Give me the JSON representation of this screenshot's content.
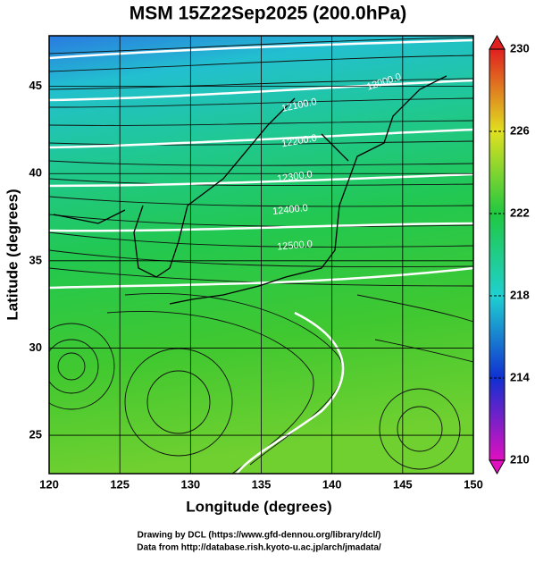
{
  "chart_data": {
    "type": "map",
    "title": "MSM 15Z22Sep2025 (200.0hPa)",
    "x_label": "Longitude (degrees)",
    "y_label": "Latitude  (degrees)",
    "xlim": [
      120,
      150
    ],
    "xticks": [
      120,
      125,
      130,
      135,
      140,
      145,
      150
    ],
    "ylim": [
      22.8,
      47.9
    ],
    "yticks": [
      25,
      30,
      35,
      40,
      45
    ],
    "grid": true,
    "contour_labels": [
      "12000.0",
      "12100.0",
      "12200.0",
      "12300.0",
      "12400.0",
      "12500.0"
    ],
    "colorbar": {
      "lim": [
        210,
        230
      ],
      "ticks": [
        210,
        214,
        218,
        222,
        226,
        230
      ],
      "colors": [
        "#e010c0",
        "#1030d0",
        "#20d0d0",
        "#20c840",
        "#e0e020",
        "#e02020"
      ]
    },
    "credits": [
      "Drawing by DCL (https://www.gfd-dennou.org/library/dcl/)",
      "Data from http://database.rish.kyoto-u.ac.jp/arch/jmadata/"
    ]
  }
}
